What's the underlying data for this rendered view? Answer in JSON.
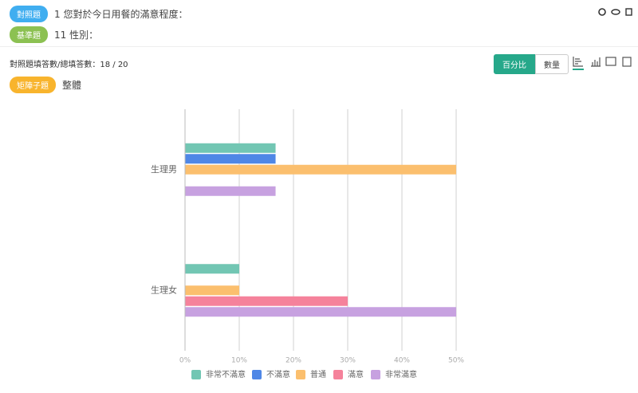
{
  "header": {
    "compare_tag": "對照題",
    "compare_question": "1 您對於今日用餐的滿意程度：",
    "base_tag": "基準題",
    "base_question": "11 性別："
  },
  "summary": "對照題填答數/總填答數：18 / 20",
  "toggle": [
    "百分比",
    "數量"
  ],
  "matrix_tag": "矩陣子題",
  "matrix_item": "整體",
  "chart_data": {
    "type": "hbar",
    "categories": [
      "生理男",
      "生理女"
    ],
    "series": [
      {
        "name": "非常不滿意",
        "color": "#72c6b3",
        "values": [
          16.7,
          10
        ]
      },
      {
        "name": "不滿意",
        "color": "#4f87e6",
        "values": [
          16.7,
          0
        ]
      },
      {
        "name": "普通",
        "color": "#fbbf6e",
        "values": [
          50,
          10
        ]
      },
      {
        "name": "滿意",
        "color": "#f5829b",
        "values": [
          0,
          30
        ]
      },
      {
        "name": "非常滿意",
        "color": "#c7a1e0",
        "values": [
          16.7,
          50
        ]
      }
    ],
    "xlim": [
      0,
      50
    ],
    "xticks": [
      {
        "value": 0,
        "label": "0%"
      },
      {
        "value": 10,
        "label": "10%"
      },
      {
        "value": 20,
        "label": "20%"
      },
      {
        "value": 30,
        "label": "30%"
      },
      {
        "value": 40,
        "label": "40%"
      },
      {
        "value": 50,
        "label": "50%"
      }
    ],
    "grid": true,
    "legend": "bottom"
  }
}
